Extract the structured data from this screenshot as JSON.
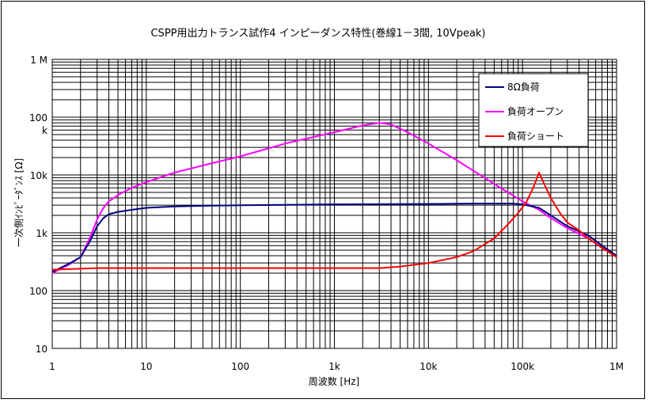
{
  "chart_data": {
    "type": "line",
    "title": "CSPP用出力トランス試作4 インピーダンス特性(巻線1－3間, 10Vpeak)",
    "xlabel": "周波数 [Hz]",
    "ylabel": "一次側ｲﾝﾋﾟｰﾀﾞﾝｽ [Ω]",
    "x_scale": "log",
    "y_scale": "log",
    "xlim": [
      1,
      1000000
    ],
    "ylim": [
      10,
      1000000
    ],
    "x_ticks": [
      1,
      10,
      100,
      1000,
      10000,
      100000,
      1000000
    ],
    "x_tick_labels": [
      "1",
      "10",
      "100",
      "1k",
      "10k",
      "100k",
      "1M"
    ],
    "y_ticks": [
      10,
      100,
      1000,
      10000,
      100000,
      1000000
    ],
    "y_tick_labels": [
      "10",
      "100",
      "1k",
      "10k",
      "100\nk",
      "1 M"
    ],
    "grid": true,
    "legend_position": "top-right",
    "series": [
      {
        "name": "8Ω負荷",
        "color": "#000080",
        "points": [
          [
            1,
            210
          ],
          [
            1.5,
            290
          ],
          [
            2,
            380
          ],
          [
            2.5,
            700
          ],
          [
            3,
            1300
          ],
          [
            3.5,
            1800
          ],
          [
            4,
            2100
          ],
          [
            5,
            2300
          ],
          [
            7,
            2500
          ],
          [
            10,
            2700
          ],
          [
            20,
            2850
          ],
          [
            50,
            2950
          ],
          [
            100,
            3000
          ],
          [
            1000,
            3100
          ],
          [
            10000,
            3150
          ],
          [
            30000,
            3200
          ],
          [
            80000,
            3200
          ],
          [
            100000,
            3100
          ],
          [
            150000,
            2700
          ],
          [
            200000,
            2000
          ],
          [
            300000,
            1300
          ],
          [
            500000,
            900
          ],
          [
            700000,
            600
          ],
          [
            1000000,
            400
          ]
        ]
      },
      {
        "name": "負荷オープン",
        "color": "#ff00ff",
        "points": [
          [
            1,
            200
          ],
          [
            1.5,
            280
          ],
          [
            2,
            380
          ],
          [
            2.5,
            800
          ],
          [
            3,
            1700
          ],
          [
            3.5,
            2700
          ],
          [
            4,
            3500
          ],
          [
            5,
            4500
          ],
          [
            7,
            6000
          ],
          [
            10,
            7500
          ],
          [
            20,
            11000
          ],
          [
            50,
            16000
          ],
          [
            100,
            21000
          ],
          [
            300,
            35000
          ],
          [
            1000,
            55000
          ],
          [
            2000,
            72000
          ],
          [
            3000,
            80000
          ],
          [
            4000,
            75000
          ],
          [
            6000,
            55000
          ],
          [
            10000,
            35000
          ],
          [
            20000,
            18000
          ],
          [
            50000,
            7000
          ],
          [
            100000,
            3500
          ],
          [
            150000,
            2500
          ],
          [
            200000,
            1800
          ],
          [
            300000,
            1200
          ],
          [
            500000,
            800
          ],
          [
            700000,
            550
          ],
          [
            1000000,
            400
          ]
        ]
      },
      {
        "name": "負荷ショート",
        "color": "#ff0000",
        "points": [
          [
            1,
            230
          ],
          [
            3,
            245
          ],
          [
            10,
            245
          ],
          [
            100,
            245
          ],
          [
            1000,
            245
          ],
          [
            3000,
            245
          ],
          [
            5000,
            260
          ],
          [
            10000,
            300
          ],
          [
            20000,
            380
          ],
          [
            30000,
            480
          ],
          [
            50000,
            800
          ],
          [
            70000,
            1400
          ],
          [
            90000,
            2200
          ],
          [
            110000,
            3400
          ],
          [
            130000,
            6000
          ],
          [
            150000,
            11000
          ],
          [
            170000,
            7000
          ],
          [
            200000,
            4000
          ],
          [
            250000,
            2200
          ],
          [
            300000,
            1500
          ],
          [
            400000,
            1100
          ],
          [
            500000,
            800
          ],
          [
            700000,
            550
          ],
          [
            1000000,
            380
          ]
        ]
      }
    ]
  }
}
